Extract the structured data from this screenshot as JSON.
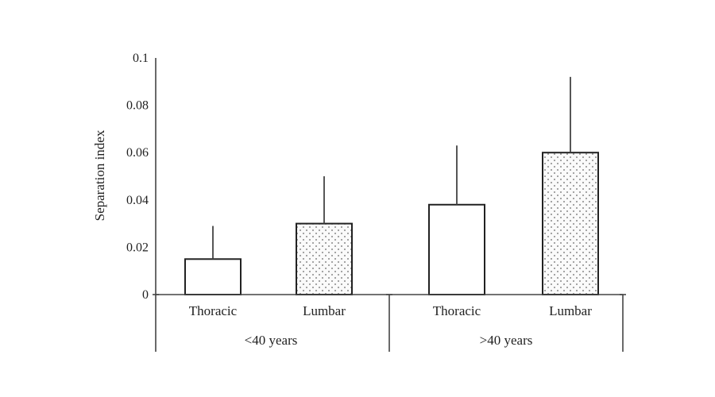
{
  "chart_data": {
    "type": "bar",
    "ylabel": "Separation index",
    "ylim": [
      0,
      0.1
    ],
    "yticks": [
      "0",
      "0.02",
      "0.04",
      "0.06",
      "0.08",
      "0.1"
    ],
    "groups": [
      "<40 years",
      ">40 years"
    ],
    "categories": [
      "Thoracic",
      "Lumbar",
      "Thoracic",
      "Lumbar"
    ],
    "bars": [
      {
        "group": "<40 years",
        "category": "Thoracic",
        "value": 0.015,
        "error": 0.014,
        "fill": "blank"
      },
      {
        "group": "<40 years",
        "category": "Lumbar",
        "value": 0.03,
        "error": 0.02,
        "fill": "dotted"
      },
      {
        "group": ">40 years",
        "category": "Thoracic",
        "value": 0.038,
        "error": 0.025,
        "fill": "blank"
      },
      {
        "group": ">40 years",
        "category": "Lumbar",
        "value": 0.06,
        "error": 0.032,
        "fill": "dotted"
      }
    ],
    "grid": false,
    "legend": "none"
  }
}
